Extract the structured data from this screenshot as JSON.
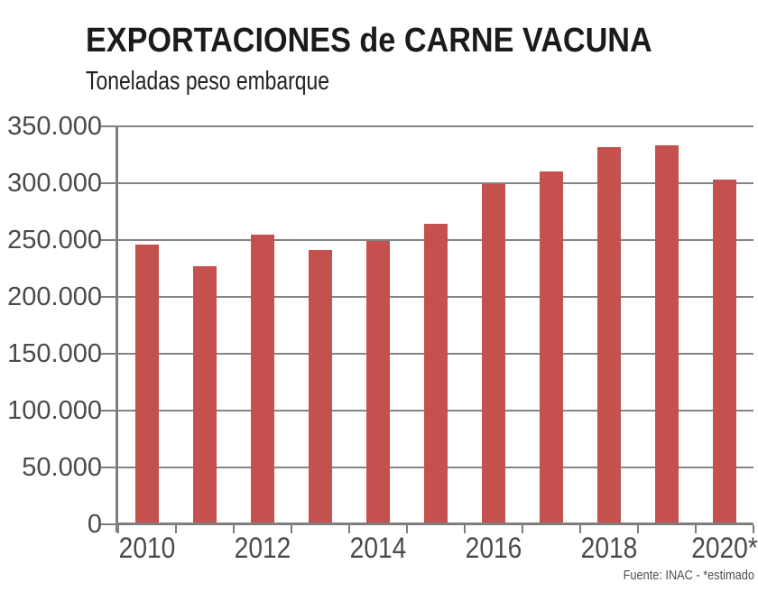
{
  "chart_data": {
    "type": "bar",
    "title": "EXPORTACIONES de CARNE VACUNA",
    "subtitle": "Toneladas peso embarque",
    "categories": [
      "2010",
      "2011",
      "2012",
      "2013",
      "2014",
      "2015",
      "2016",
      "2017",
      "2018",
      "2019",
      "2020*"
    ],
    "values": [
      246000,
      227000,
      255000,
      241000,
      249000,
      264000,
      299000,
      310000,
      332000,
      333000,
      303000
    ],
    "x_tick_labels": [
      "2010",
      "2012",
      "2014",
      "2016",
      "2018",
      "2020*"
    ],
    "x_tick_label_category_indexes": [
      0,
      2,
      4,
      6,
      8,
      10
    ],
    "y_tick_labels": [
      "350.000",
      "300.000",
      "250.000",
      "200.000",
      "150.000",
      "100.000",
      "50.000",
      "0"
    ],
    "ylim": [
      0,
      350000
    ],
    "y_step": 50000,
    "grid": true,
    "legend_position": "none",
    "source_note": "Fuente: INAC - *estimado",
    "bar_color": "#C4514D",
    "grid_color": "#848484",
    "axis_color": "#7e7e7e",
    "axis_text_color": "#4a4a4a",
    "title_color": "#1b1b1b"
  }
}
